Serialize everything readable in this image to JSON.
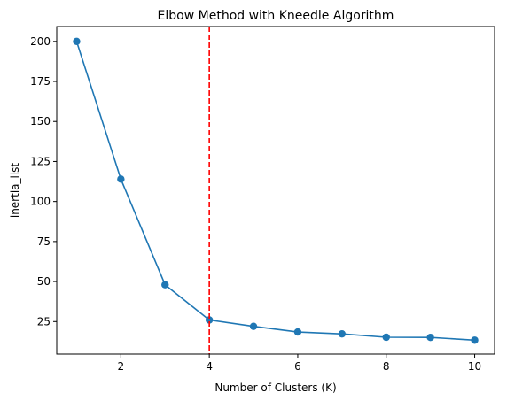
{
  "chart_data": {
    "type": "line",
    "title": "Elbow Method with Kneedle Algorithm",
    "xlabel": "Number of Clusters (K)",
    "ylabel": "inertia_list",
    "x": [
      1,
      2,
      3,
      4,
      5,
      6,
      7,
      8,
      9,
      10
    ],
    "series": [
      {
        "values": [
          200,
          114,
          48,
          26,
          22,
          18.5,
          17.3,
          15.2,
          15.1,
          13.4
        ],
        "color": "#1f77b4",
        "marker": "circle"
      }
    ],
    "xlim": [
      0.55,
      10.45
    ],
    "ylim": [
      4.7,
      209.3
    ],
    "xticks": [
      2,
      4,
      6,
      8,
      10
    ],
    "yticks": [
      25,
      50,
      75,
      100,
      125,
      150,
      175,
      200
    ],
    "vline": {
      "x": 4,
      "color": "#ff0000",
      "style": "dashed"
    },
    "grid": false
  }
}
